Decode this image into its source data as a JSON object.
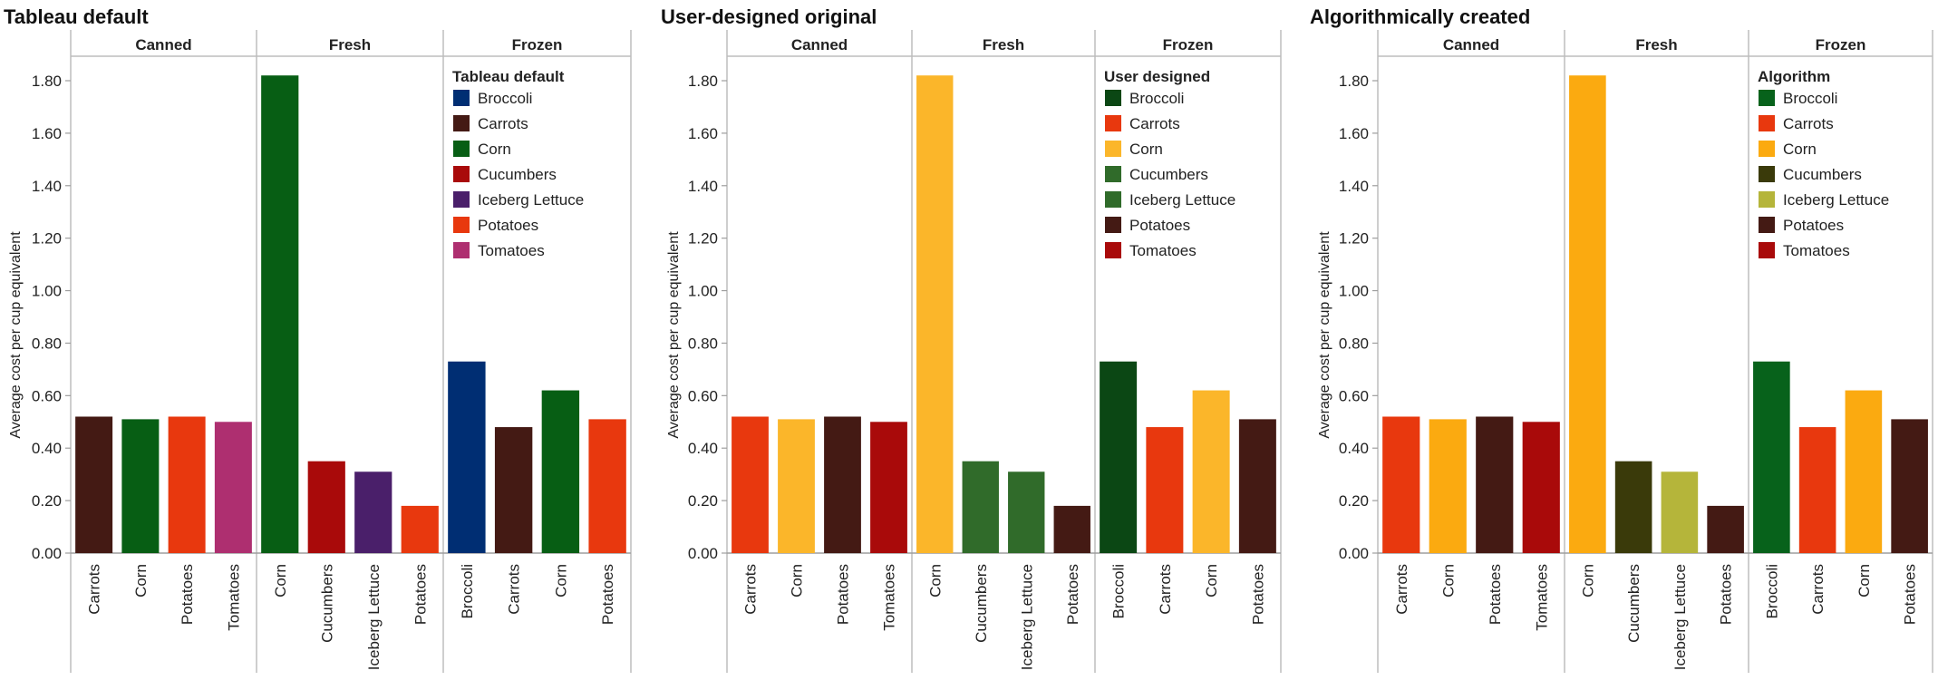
{
  "chart_data": [
    {
      "type": "bar",
      "title": "Tableau default",
      "ylabel": "Average cost per cup equivalent",
      "ylim": [
        0,
        1.9
      ],
      "yticks": [
        "0.00",
        "0.20",
        "0.40",
        "0.60",
        "0.80",
        "1.00",
        "1.20",
        "1.40",
        "1.60",
        "1.80"
      ],
      "grid": false,
      "legend_title": "Tableau default",
      "legend_placement": "top-right",
      "legend": [
        {
          "name": "Broccoli",
          "color": "#002E73"
        },
        {
          "name": "Carrots",
          "color": "#441A14"
        },
        {
          "name": "Corn",
          "color": "#075E14"
        },
        {
          "name": "Cucumbers",
          "color": "#A90A0A"
        },
        {
          "name": "Iceberg Lettuce",
          "color": "#4A1F6A"
        },
        {
          "name": "Potatoes",
          "color": "#E8380E"
        },
        {
          "name": "Tomatoes",
          "color": "#AE2F70"
        }
      ],
      "groups": [
        {
          "name": "Canned",
          "bars": [
            {
              "label": "Carrots",
              "value": 0.52,
              "color": "#441A14"
            },
            {
              "label": "Corn",
              "value": 0.51,
              "color": "#075E14"
            },
            {
              "label": "Potatoes",
              "value": 0.52,
              "color": "#E8380E"
            },
            {
              "label": "Tomatoes",
              "value": 0.5,
              "color": "#AE2F70"
            }
          ]
        },
        {
          "name": "Fresh",
          "bars": [
            {
              "label": "Corn",
              "value": 1.82,
              "color": "#075E14"
            },
            {
              "label": "Cucumbers",
              "value": 0.35,
              "color": "#A90A0A"
            },
            {
              "label": "Iceberg Lettuce",
              "value": 0.31,
              "color": "#4A1F6A"
            },
            {
              "label": "Potatoes",
              "value": 0.18,
              "color": "#E8380E"
            }
          ]
        },
        {
          "name": "Frozen",
          "bars": [
            {
              "label": "Broccoli",
              "value": 0.73,
              "color": "#002E73"
            },
            {
              "label": "Carrots",
              "value": 0.48,
              "color": "#441A14"
            },
            {
              "label": "Corn",
              "value": 0.62,
              "color": "#075E14"
            },
            {
              "label": "Potatoes",
              "value": 0.51,
              "color": "#E8380E"
            }
          ]
        }
      ]
    },
    {
      "type": "bar",
      "title": "User-designed original",
      "ylabel": "Average cost per cup equivalent",
      "ylim": [
        0,
        1.9
      ],
      "yticks": [
        "0.00",
        "0.20",
        "0.40",
        "0.60",
        "0.80",
        "1.00",
        "1.20",
        "1.40",
        "1.60",
        "1.80"
      ],
      "grid": false,
      "legend_title": "User designed",
      "legend_placement": "top-right",
      "legend": [
        {
          "name": "Broccoli",
          "color": "#0B4714"
        },
        {
          "name": "Carrots",
          "color": "#E8380E"
        },
        {
          "name": "Corn",
          "color": "#FBB62A"
        },
        {
          "name": "Cucumbers",
          "color": "#306B2A"
        },
        {
          "name": "Iceberg Lettuce",
          "color": "#306B2A"
        },
        {
          "name": "Potatoes",
          "color": "#441A14"
        },
        {
          "name": "Tomatoes",
          "color": "#A90A0A"
        }
      ],
      "groups": [
        {
          "name": "Canned",
          "bars": [
            {
              "label": "Carrots",
              "value": 0.52,
              "color": "#E8380E"
            },
            {
              "label": "Corn",
              "value": 0.51,
              "color": "#FBB62A"
            },
            {
              "label": "Potatoes",
              "value": 0.52,
              "color": "#441A14"
            },
            {
              "label": "Tomatoes",
              "value": 0.5,
              "color": "#A90A0A"
            }
          ]
        },
        {
          "name": "Fresh",
          "bars": [
            {
              "label": "Corn",
              "value": 1.82,
              "color": "#FBB62A"
            },
            {
              "label": "Cucumbers",
              "value": 0.35,
              "color": "#306B2A"
            },
            {
              "label": "Iceberg Lettuce",
              "value": 0.31,
              "color": "#306B2A"
            },
            {
              "label": "Potatoes",
              "value": 0.18,
              "color": "#441A14"
            }
          ]
        },
        {
          "name": "Frozen",
          "bars": [
            {
              "label": "Broccoli",
              "value": 0.73,
              "color": "#0B4714"
            },
            {
              "label": "Carrots",
              "value": 0.48,
              "color": "#E8380E"
            },
            {
              "label": "Corn",
              "value": 0.62,
              "color": "#FBB62A"
            },
            {
              "label": "Potatoes",
              "value": 0.51,
              "color": "#441A14"
            }
          ]
        }
      ]
    },
    {
      "type": "bar",
      "title": "Algorithmically created",
      "ylabel": "Average cost per cup equivalent",
      "ylim": [
        0,
        1.9
      ],
      "yticks": [
        "0.00",
        "0.20",
        "0.40",
        "0.60",
        "0.80",
        "1.00",
        "1.20",
        "1.40",
        "1.60",
        "1.80"
      ],
      "grid": false,
      "legend_title": "Algorithm",
      "legend_placement": "top-right",
      "legend": [
        {
          "name": "Broccoli",
          "color": "#07621B"
        },
        {
          "name": "Carrots",
          "color": "#E8380E"
        },
        {
          "name": "Corn",
          "color": "#FBAA10"
        },
        {
          "name": "Cucumbers",
          "color": "#3A3A0A"
        },
        {
          "name": "Iceberg Lettuce",
          "color": "#B5B53A"
        },
        {
          "name": "Potatoes",
          "color": "#441A14"
        },
        {
          "name": "Tomatoes",
          "color": "#A90A0A"
        }
      ],
      "groups": [
        {
          "name": "Canned",
          "bars": [
            {
              "label": "Carrots",
              "value": 0.52,
              "color": "#E8380E"
            },
            {
              "label": "Corn",
              "value": 0.51,
              "color": "#FBAA10"
            },
            {
              "label": "Potatoes",
              "value": 0.52,
              "color": "#441A14"
            },
            {
              "label": "Tomatoes",
              "value": 0.5,
              "color": "#A90A0A"
            }
          ]
        },
        {
          "name": "Fresh",
          "bars": [
            {
              "label": "Corn",
              "value": 1.82,
              "color": "#FBAA10"
            },
            {
              "label": "Cucumbers",
              "value": 0.35,
              "color": "#3A3A0A"
            },
            {
              "label": "Iceberg Lettuce",
              "value": 0.31,
              "color": "#B5B53A"
            },
            {
              "label": "Potatoes",
              "value": 0.18,
              "color": "#441A14"
            }
          ]
        },
        {
          "name": "Frozen",
          "bars": [
            {
              "label": "Broccoli",
              "value": 0.73,
              "color": "#07621B"
            },
            {
              "label": "Carrots",
              "value": 0.48,
              "color": "#E8380E"
            },
            {
              "label": "Corn",
              "value": 0.62,
              "color": "#FBAA10"
            },
            {
              "label": "Potatoes",
              "value": 0.51,
              "color": "#441A14"
            }
          ]
        }
      ]
    }
  ]
}
